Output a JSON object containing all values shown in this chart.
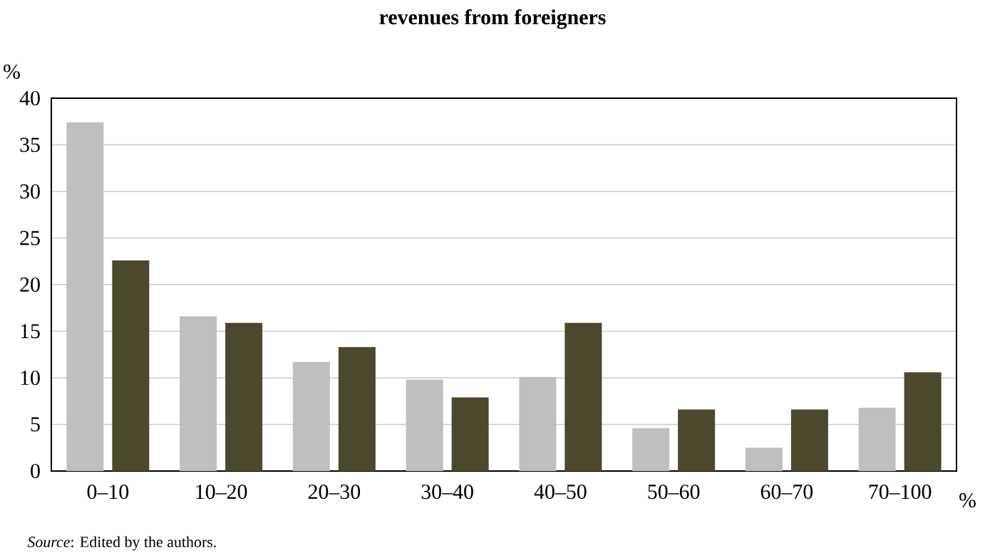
{
  "chart_data": {
    "type": "bar",
    "title": "revenues from foreigners",
    "xlabel": "%",
    "ylabel": "%",
    "categories": [
      "0–10",
      "10–20",
      "20–30",
      "30–40",
      "40–50",
      "50–60",
      "60–70",
      "70–100"
    ],
    "series": [
      {
        "color": "#bfbfbf",
        "values": [
          37.4,
          16.6,
          11.7,
          9.8,
          10.1,
          4.6,
          2.5,
          6.8
        ]
      },
      {
        "color": "#4b482d",
        "values": [
          22.6,
          15.9,
          13.3,
          7.9,
          15.9,
          6.6,
          6.6,
          10.6
        ]
      }
    ],
    "ylim": [
      0,
      40
    ],
    "yticks": [
      0,
      5,
      10,
      15,
      20,
      25,
      30,
      35,
      40
    ],
    "grid": "y",
    "annotations": [
      "*Source*: Edited by the authors."
    ]
  }
}
